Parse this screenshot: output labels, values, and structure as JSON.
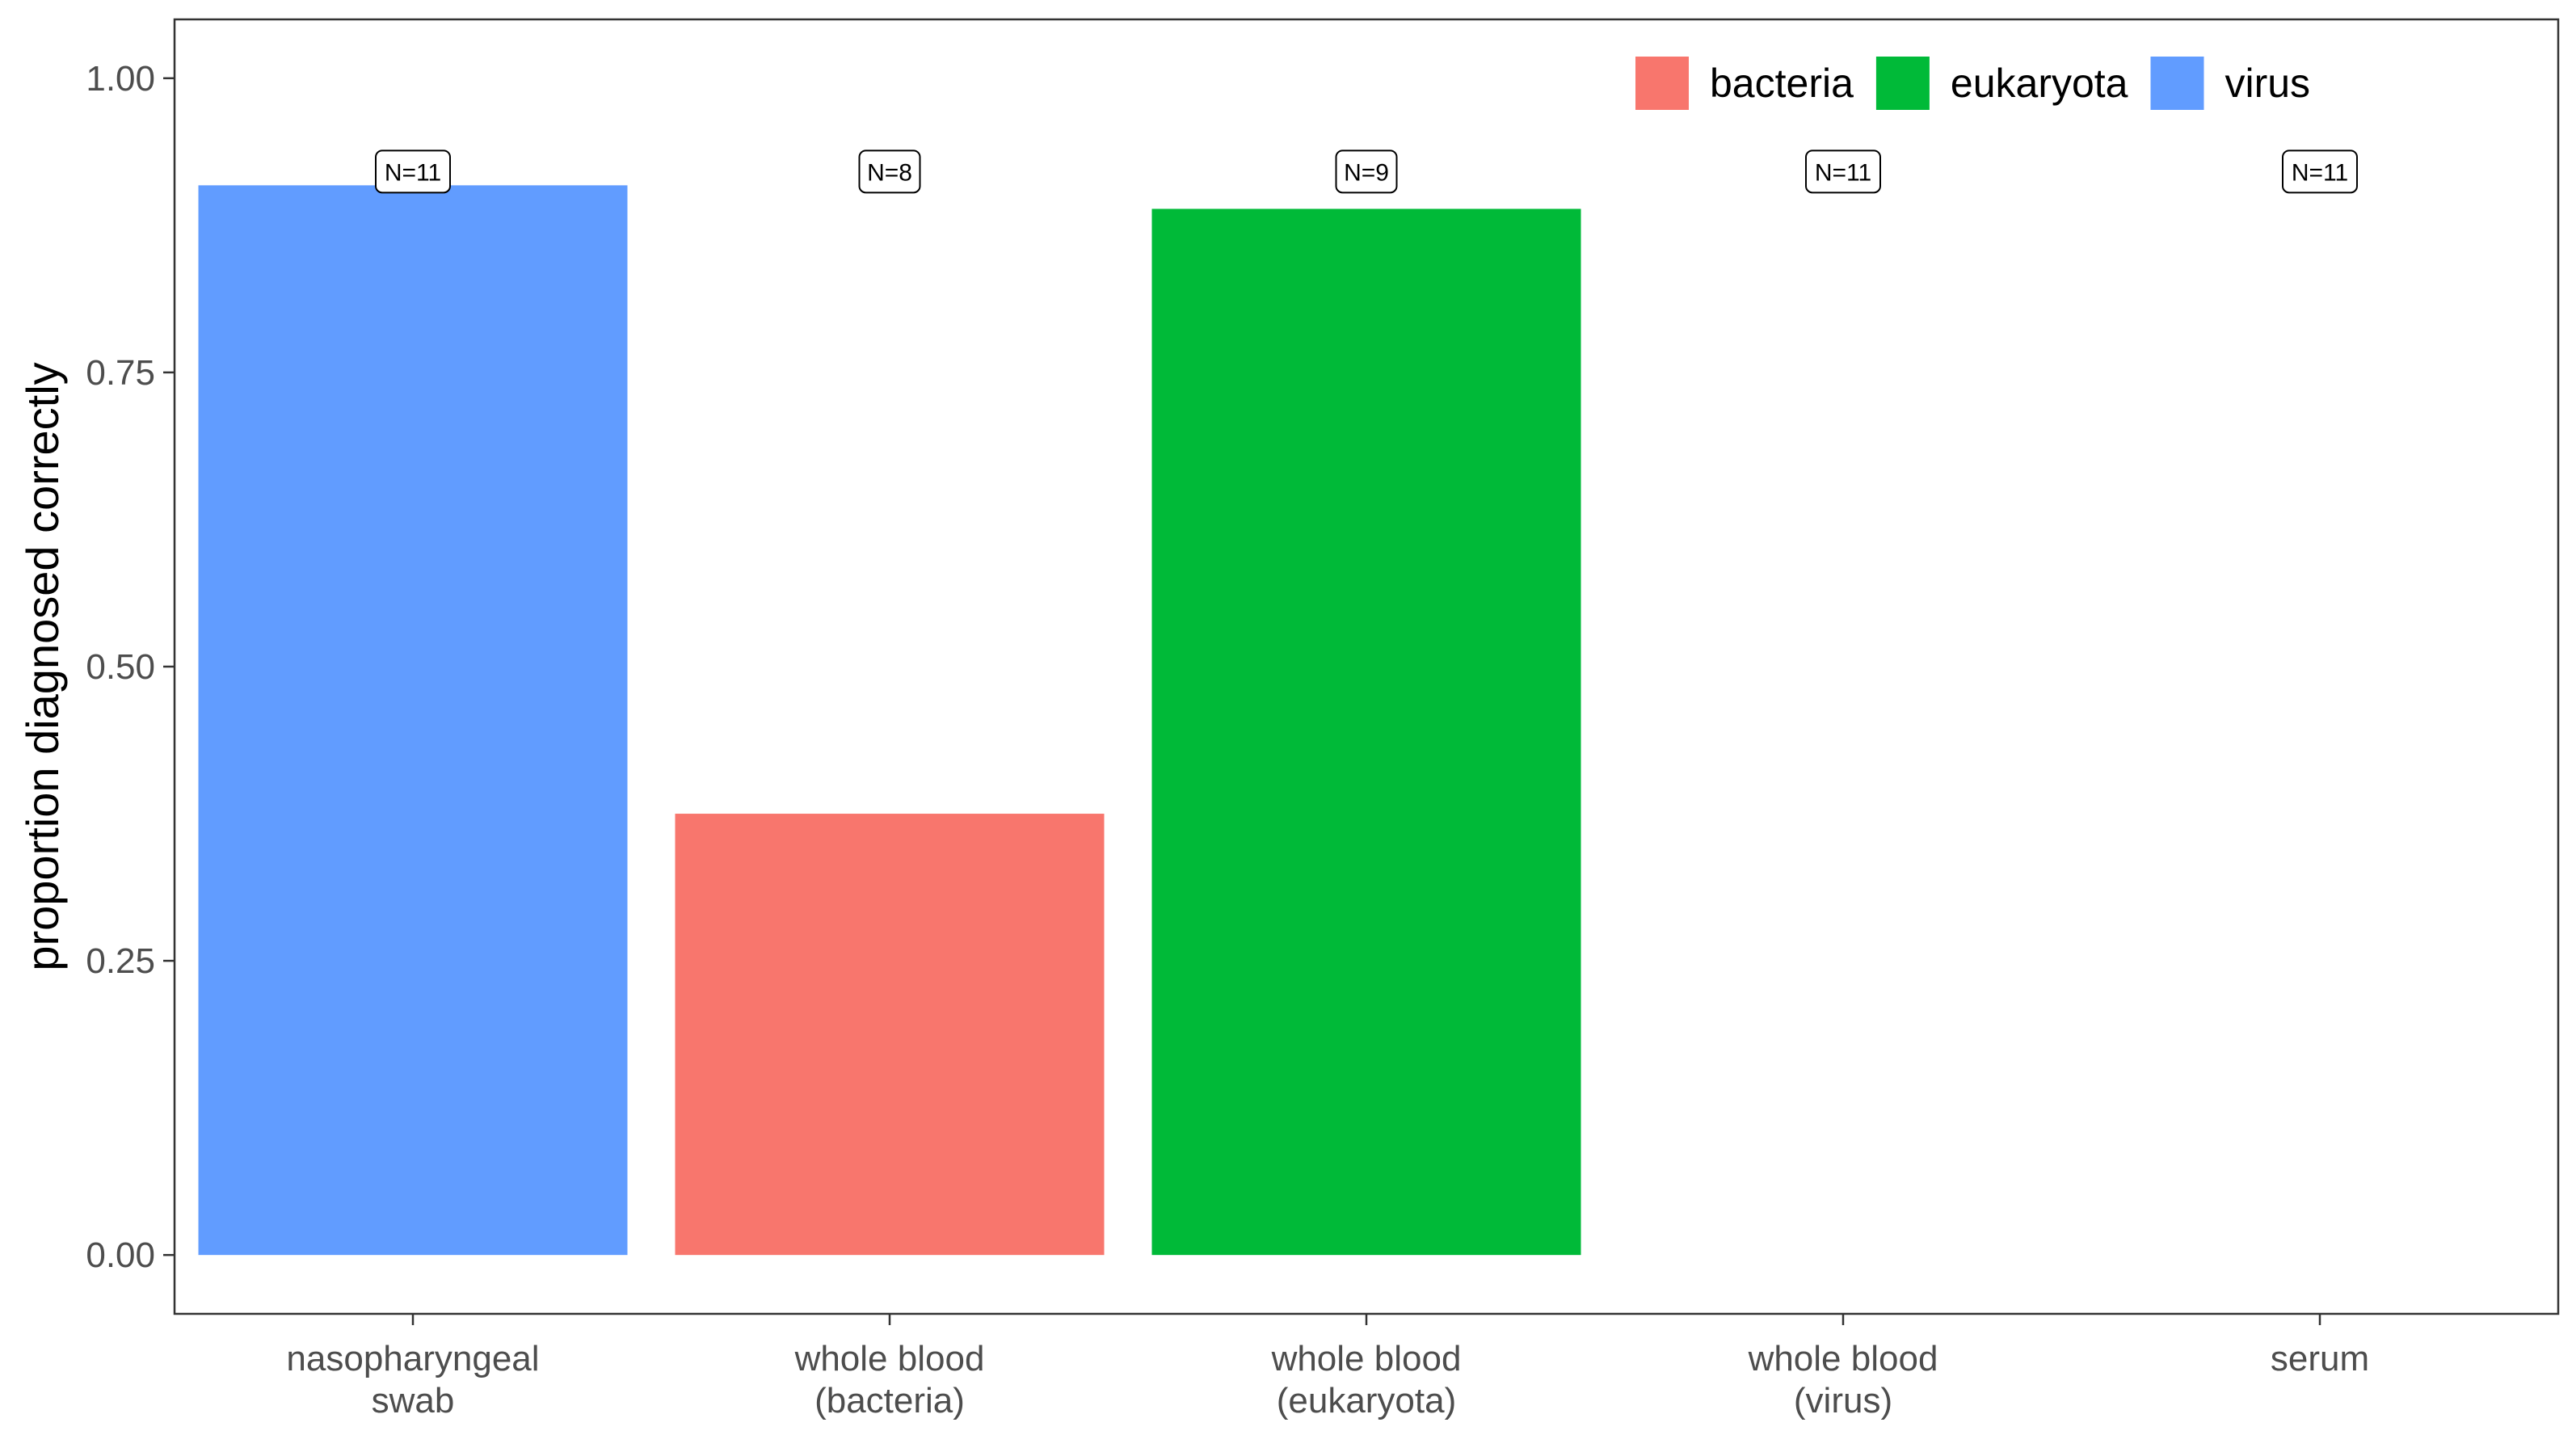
{
  "chart_data": {
    "type": "bar",
    "title": "",
    "xlabel": "",
    "ylabel": "proportion diagnosed correctly",
    "ylim": [
      -0.05,
      1.05
    ],
    "yticks": [
      0.0,
      0.25,
      0.5,
      0.75,
      1.0
    ],
    "ytick_labels": [
      "0.00",
      "0.25",
      "0.50",
      "0.75",
      "1.00"
    ],
    "categories": [
      [
        "nasopharyngeal",
        "swab"
      ],
      [
        "whole blood",
        "(bacteria)"
      ],
      [
        "whole blood",
        "(eukaryota)"
      ],
      [
        "whole blood",
        "(virus)"
      ],
      [
        "serum"
      ]
    ],
    "values": [
      0.909,
      0.375,
      0.889,
      0,
      0
    ],
    "bar_group": [
      "virus",
      "bacteria",
      "eukaryota",
      "virus",
      "virus"
    ],
    "n_labels": [
      "N=11",
      "N=8",
      "N=9",
      "N=11",
      "N=11"
    ],
    "n_label_y": 0.92,
    "grid": false,
    "legend": {
      "placement": "top-right",
      "entries": [
        {
          "label": "bacteria",
          "color": "#F8766D"
        },
        {
          "label": "eukaryota",
          "color": "#00BA38"
        },
        {
          "label": "virus",
          "color": "#619CFF"
        }
      ]
    }
  }
}
